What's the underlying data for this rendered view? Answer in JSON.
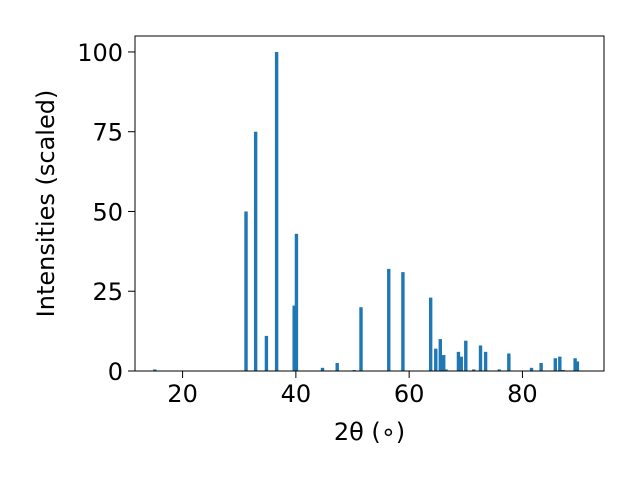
{
  "chart_data": {
    "type": "bar",
    "xlabel": "2θ (∘)",
    "ylabel": "Intensities (scaled)",
    "xlim": [
      11.6,
      94.4
    ],
    "ylim": [
      0,
      105
    ],
    "xticks": [
      20,
      40,
      60,
      80
    ],
    "yticks": [
      0,
      25,
      50,
      75,
      100
    ],
    "bar_color": "#1f77b4",
    "bar_width": 0.6,
    "grid": false,
    "x": [
      15.1,
      31.2,
      32.9,
      34.8,
      36.6,
      39.7,
      40.1,
      44.7,
      47.3,
      50.3,
      51.5,
      56.4,
      58.9,
      63.8,
      64.7,
      65.5,
      66.1,
      66.5,
      68.7,
      69.2,
      70.0,
      71.4,
      72.6,
      73.5,
      75.9,
      77.6,
      81.6,
      83.3,
      85.8,
      86.6,
      87.2,
      89.3,
      89.7
    ],
    "values": [
      0.5,
      50,
      75,
      11,
      100,
      20.5,
      43,
      1,
      2.5,
      0.3,
      20,
      32,
      31,
      23,
      7,
      10,
      5,
      0.5,
      6,
      4.5,
      9.5,
      0.5,
      8,
      6,
      0.5,
      5.5,
      1,
      2.5,
      4,
      4.5,
      0.3,
      4,
      3
    ]
  }
}
